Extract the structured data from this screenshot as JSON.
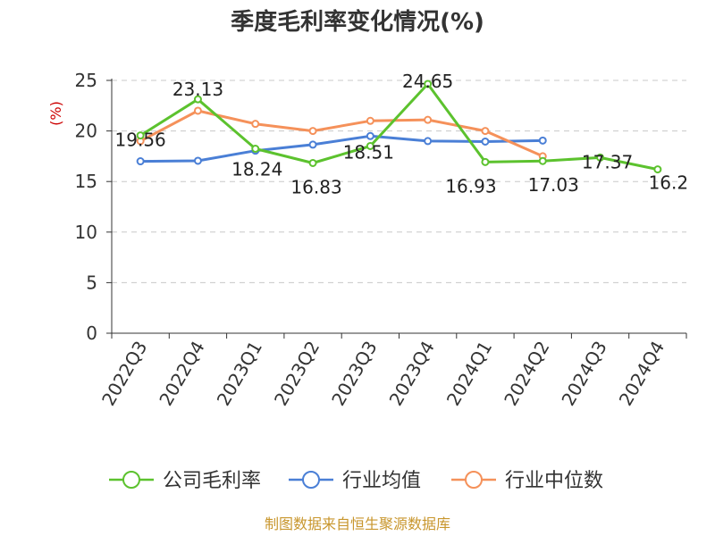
{
  "chart_data": {
    "type": "line",
    "title": "季度毛利率变化情况(%)",
    "ylabel": "(%)",
    "xlabel": "",
    "ylim": [
      0,
      25
    ],
    "yticks": [
      0,
      5,
      10,
      15,
      20,
      25
    ],
    "grid": true,
    "legend_position": "bottom",
    "categories": [
      "2022Q3",
      "2022Q4",
      "2023Q1",
      "2023Q2",
      "2023Q3",
      "2023Q4",
      "2024Q1",
      "2024Q2",
      "2024Q3",
      "2024Q4"
    ],
    "series": [
      {
        "name": "公司毛利率",
        "color": "#5cc22e",
        "values": [
          19.56,
          23.13,
          18.24,
          16.83,
          18.51,
          24.65,
          16.93,
          17.03,
          17.37,
          16.2
        ],
        "labels": [
          "19.56",
          "23.13",
          "18.24",
          "16.83",
          "18.51",
          "24.65",
          "16.93",
          "17.03",
          "17.37",
          "16.2"
        ]
      },
      {
        "name": "行业均值",
        "color": "#4a7fd6",
        "values": [
          17.0,
          17.05,
          18.05,
          18.65,
          19.5,
          19.0,
          18.95,
          19.05,
          null,
          null
        ]
      },
      {
        "name": "行业中位数",
        "color": "#f5915a",
        "values": [
          19.0,
          22.0,
          20.7,
          20.0,
          21.0,
          21.1,
          20.0,
          17.5,
          null,
          null
        ]
      }
    ]
  },
  "source_text": "制图数据来自恒生聚源数据库"
}
